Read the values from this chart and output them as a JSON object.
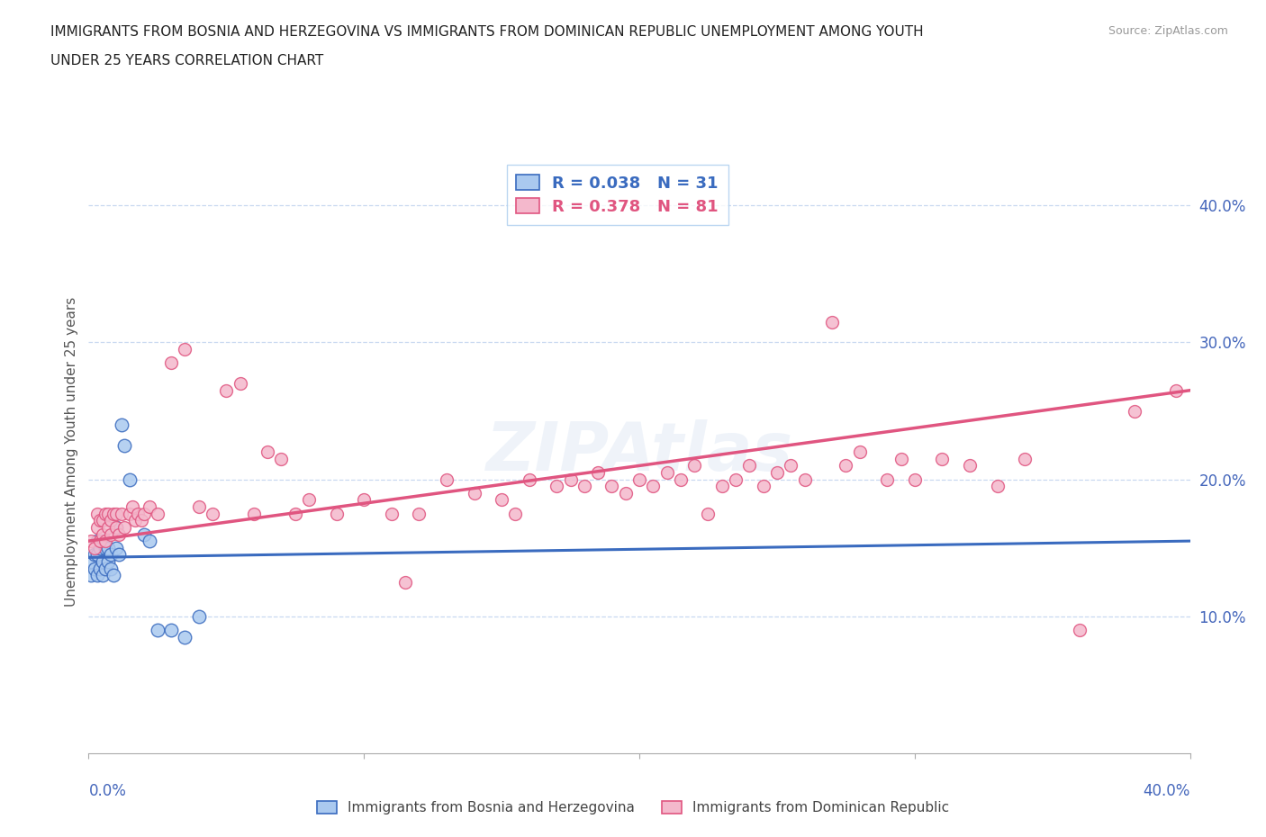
{
  "title_line1": "IMMIGRANTS FROM BOSNIA AND HERZEGOVINA VS IMMIGRANTS FROM DOMINICAN REPUBLIC UNEMPLOYMENT AMONG YOUTH",
  "title_line2": "UNDER 25 YEARS CORRELATION CHART",
  "source": "Source: ZipAtlas.com",
  "xlabel_bosnia": "Immigrants from Bosnia and Herzegovina",
  "xlabel_dr": "Immigrants from Dominican Republic",
  "ylabel": "Unemployment Among Youth under 25 years",
  "xlim": [
    0.0,
    0.4
  ],
  "ylim": [
    0.0,
    0.44
  ],
  "yticks": [
    0.1,
    0.2,
    0.3,
    0.4
  ],
  "xtick_left": "0.0%",
  "xtick_right": "40.0%",
  "r_bosnia": 0.038,
  "n_bosnia": 31,
  "r_dr": 0.378,
  "n_dr": 81,
  "color_bosnia": "#aac9ef",
  "color_dr": "#f4b8cc",
  "trend_color_bosnia": "#3a6bbf",
  "trend_color_dr": "#e05580",
  "tick_color": "#4466bb",
  "watermark": "ZIPAtlas",
  "bosnia_x": [
    0.001,
    0.001,
    0.002,
    0.002,
    0.003,
    0.003,
    0.003,
    0.004,
    0.004,
    0.005,
    0.005,
    0.005,
    0.006,
    0.006,
    0.007,
    0.007,
    0.008,
    0.008,
    0.009,
    0.01,
    0.01,
    0.011,
    0.012,
    0.013,
    0.015,
    0.02,
    0.022,
    0.025,
    0.03,
    0.035,
    0.04
  ],
  "bosnia_y": [
    0.13,
    0.14,
    0.135,
    0.145,
    0.13,
    0.145,
    0.155,
    0.135,
    0.15,
    0.13,
    0.14,
    0.155,
    0.135,
    0.15,
    0.14,
    0.15,
    0.145,
    0.135,
    0.13,
    0.15,
    0.165,
    0.145,
    0.24,
    0.225,
    0.2,
    0.16,
    0.155,
    0.09,
    0.09,
    0.085,
    0.1
  ],
  "dr_x": [
    0.001,
    0.002,
    0.003,
    0.003,
    0.004,
    0.004,
    0.005,
    0.005,
    0.006,
    0.006,
    0.007,
    0.007,
    0.008,
    0.008,
    0.009,
    0.01,
    0.01,
    0.011,
    0.012,
    0.013,
    0.015,
    0.016,
    0.017,
    0.018,
    0.019,
    0.02,
    0.022,
    0.025,
    0.03,
    0.035,
    0.04,
    0.045,
    0.05,
    0.055,
    0.06,
    0.065,
    0.07,
    0.075,
    0.08,
    0.09,
    0.1,
    0.11,
    0.115,
    0.12,
    0.13,
    0.14,
    0.15,
    0.155,
    0.16,
    0.17,
    0.175,
    0.18,
    0.185,
    0.19,
    0.195,
    0.2,
    0.205,
    0.21,
    0.215,
    0.22,
    0.225,
    0.23,
    0.235,
    0.24,
    0.245,
    0.25,
    0.255,
    0.26,
    0.27,
    0.275,
    0.28,
    0.29,
    0.295,
    0.3,
    0.31,
    0.32,
    0.33,
    0.34,
    0.36,
    0.38,
    0.395
  ],
  "dr_y": [
    0.155,
    0.15,
    0.165,
    0.175,
    0.155,
    0.17,
    0.16,
    0.17,
    0.155,
    0.175,
    0.165,
    0.175,
    0.16,
    0.17,
    0.175,
    0.165,
    0.175,
    0.16,
    0.175,
    0.165,
    0.175,
    0.18,
    0.17,
    0.175,
    0.17,
    0.175,
    0.18,
    0.175,
    0.285,
    0.295,
    0.18,
    0.175,
    0.265,
    0.27,
    0.175,
    0.22,
    0.215,
    0.175,
    0.185,
    0.175,
    0.185,
    0.175,
    0.125,
    0.175,
    0.2,
    0.19,
    0.185,
    0.175,
    0.2,
    0.195,
    0.2,
    0.195,
    0.205,
    0.195,
    0.19,
    0.2,
    0.195,
    0.205,
    0.2,
    0.21,
    0.175,
    0.195,
    0.2,
    0.21,
    0.195,
    0.205,
    0.21,
    0.2,
    0.315,
    0.21,
    0.22,
    0.2,
    0.215,
    0.2,
    0.215,
    0.21,
    0.195,
    0.215,
    0.09,
    0.25,
    0.265
  ]
}
